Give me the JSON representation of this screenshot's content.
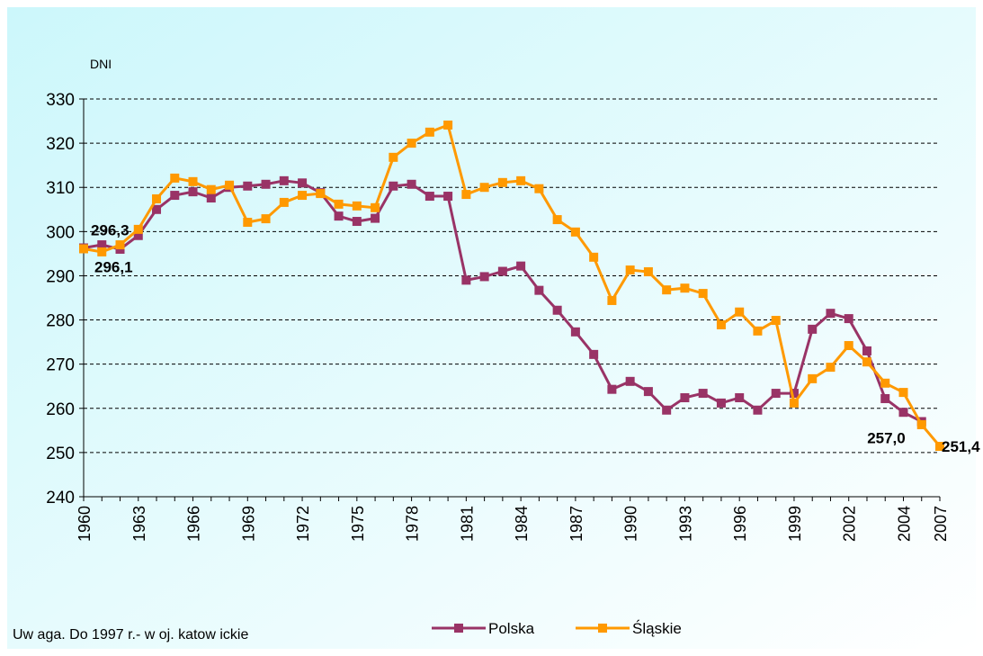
{
  "chart_data": {
    "type": "line",
    "ylabel": "DNI",
    "note": "Uw aga. Do 1997 r.- w oj. katow ickie",
    "categories": [
      "1960",
      null,
      null,
      "1963",
      null,
      null,
      "1966",
      null,
      null,
      "1969",
      null,
      null,
      "1972",
      null,
      null,
      "1975",
      null,
      null,
      "1978",
      null,
      null,
      "1981",
      null,
      null,
      "1984",
      null,
      null,
      "1987",
      null,
      null,
      "1990",
      null,
      null,
      "1993",
      null,
      null,
      "1996",
      null,
      null,
      "1999",
      null,
      null,
      "2002",
      null,
      null,
      "2004",
      null,
      "2007"
    ],
    "series": [
      {
        "name": "Polska",
        "color": "#993366",
        "values": [
          296.3,
          297.0,
          296.0,
          299.1,
          305.0,
          308.2,
          309.0,
          307.6,
          310.0,
          310.3,
          310.7,
          311.5,
          311.0,
          308.8,
          303.5,
          302.3,
          303.0,
          310.3,
          310.7,
          308.0,
          308.0,
          289.0,
          289.8,
          291.0,
          292.2,
          286.7,
          282.2,
          277.3,
          272.2,
          264.3,
          266.1,
          263.8,
          259.6,
          262.4,
          263.4,
          261.2,
          262.4,
          259.6,
          263.4,
          263.4,
          277.9,
          281.5,
          280.3,
          273.0,
          262.2,
          259.1,
          257.0,
          null
        ],
        "value_labels": [
          "296,3",
          null,
          null,
          null,
          null,
          null,
          null,
          null,
          null,
          null,
          null,
          null,
          null,
          null,
          null,
          null,
          null,
          null,
          null,
          null,
          null,
          null,
          null,
          null,
          null,
          null,
          null,
          null,
          null,
          null,
          null,
          null,
          null,
          null,
          null,
          null,
          null,
          null,
          null,
          null,
          null,
          null,
          null,
          null,
          null,
          null,
          "257,0",
          null
        ]
      },
      {
        "name": "Śląskie",
        "color": "#ff9900",
        "values": [
          296.1,
          295.4,
          297.0,
          300.5,
          307.4,
          312.1,
          311.3,
          309.5,
          310.5,
          302.1,
          302.9,
          306.6,
          308.2,
          308.6,
          306.2,
          305.8,
          305.4,
          316.8,
          320.0,
          322.5,
          324.1,
          308.4,
          310.0,
          311.1,
          311.5,
          309.7,
          302.7,
          299.9,
          294.2,
          284.4,
          291.3,
          290.9,
          286.8,
          287.2,
          286.0,
          278.9,
          281.8,
          277.5,
          279.9,
          261.2,
          266.7,
          269.3,
          274.2,
          270.5,
          265.7,
          263.6,
          256.3,
          251.4
        ],
        "value_labels": [
          "296,1",
          null,
          null,
          null,
          null,
          null,
          null,
          null,
          null,
          null,
          null,
          null,
          null,
          null,
          null,
          null,
          null,
          null,
          null,
          null,
          null,
          null,
          null,
          null,
          null,
          null,
          null,
          null,
          null,
          null,
          null,
          null,
          null,
          null,
          null,
          null,
          null,
          null,
          null,
          null,
          null,
          null,
          null,
          null,
          null,
          null,
          null,
          "251,4"
        ]
      }
    ],
    "ylim": [
      240,
      330
    ],
    "yticks": [
      240,
      250,
      260,
      270,
      280,
      290,
      300,
      310,
      320,
      330
    ],
    "grid": true
  }
}
